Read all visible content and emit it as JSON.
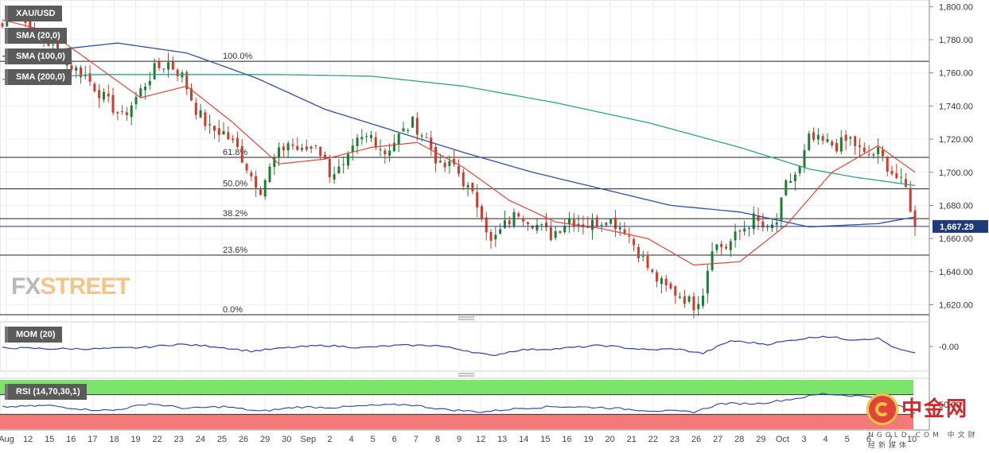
{
  "chart_data": {
    "type": "candlestick",
    "symbol": "XAU/USD",
    "last_price": "1,667.29",
    "indicators": [
      "SMA (20,0)",
      "SMA (100,0)",
      "SMA (200,0)"
    ],
    "colors": {
      "up": "#1e7d35",
      "down": "#d23a2a",
      "sma20": "#e0443a",
      "sma100": "#2f4fa8",
      "sma200": "#2aa58a",
      "price_line": "#1f3a7a"
    },
    "y_axis": {
      "min": 1614,
      "max": 1804,
      "ticks": [
        "1,800.00",
        "1,780.00",
        "1,760.00",
        "1,740.00",
        "1,720.00",
        "1,700.00",
        "1,680.00",
        "1,660.00",
        "1,640.00",
        "1,620.00"
      ],
      "tick_values": [
        1800,
        1780,
        1760,
        1740,
        1720,
        1700,
        1680,
        1660,
        1640,
        1620
      ]
    },
    "x_axis": {
      "labels": [
        "Aug",
        "12",
        "15",
        "16",
        "17",
        "18",
        "19",
        "22",
        "23",
        "24",
        "25",
        "26",
        "29",
        "30",
        "Sep",
        "2",
        "4",
        "5",
        "6",
        "7",
        "8",
        "9",
        "12",
        "13",
        "14",
        "15",
        "16",
        "19",
        "20",
        "21",
        "22",
        "23",
        "26",
        "27",
        "28",
        "29",
        "Oct",
        "3",
        "4",
        "5",
        "6",
        "7",
        "10"
      ]
    },
    "fibonacci": [
      {
        "label": "100.0%",
        "price": 1767
      },
      {
        "label": "61.8%",
        "price": 1709
      },
      {
        "label": "50.0%",
        "price": 1690
      },
      {
        "label": "38.2%",
        "price": 1672
      },
      {
        "label": "23.6%",
        "price": 1650
      },
      {
        "label": "0.0%",
        "price": 1614
      }
    ],
    "price_anchors": [
      [
        0,
        1788
      ],
      [
        2,
        1800
      ],
      [
        4,
        1794
      ],
      [
        7,
        1782
      ],
      [
        10,
        1778
      ],
      [
        14,
        1766
      ],
      [
        18,
        1758
      ],
      [
        22,
        1745
      ],
      [
        26,
        1733
      ],
      [
        29,
        1745
      ],
      [
        33,
        1762
      ],
      [
        36,
        1766
      ],
      [
        39,
        1758
      ],
      [
        42,
        1738
      ],
      [
        45,
        1726
      ],
      [
        48,
        1724
      ],
      [
        51,
        1714
      ],
      [
        54,
        1698
      ],
      [
        56,
        1690
      ],
      [
        59,
        1708
      ],
      [
        62,
        1718
      ],
      [
        65,
        1712
      ],
      [
        68,
        1718
      ],
      [
        71,
        1700
      ],
      [
        74,
        1702
      ],
      [
        77,
        1718
      ],
      [
        80,
        1722
      ],
      [
        83,
        1712
      ],
      [
        86,
        1722
      ],
      [
        89,
        1730
      ],
      [
        92,
        1720
      ],
      [
        95,
        1703
      ],
      [
        98,
        1704
      ],
      [
        101,
        1690
      ],
      [
        104,
        1676
      ],
      [
        106,
        1657
      ],
      [
        109,
        1668
      ],
      [
        112,
        1676
      ],
      [
        115,
        1670
      ],
      [
        119,
        1662
      ],
      [
        123,
        1672
      ],
      [
        127,
        1668
      ],
      [
        131,
        1672
      ],
      [
        135,
        1666
      ],
      [
        138,
        1652
      ],
      [
        141,
        1638
      ],
      [
        144,
        1630
      ],
      [
        147,
        1626
      ],
      [
        150,
        1620
      ],
      [
        152,
        1628
      ],
      [
        154,
        1656
      ],
      [
        157,
        1655
      ],
      [
        160,
        1664
      ],
      [
        163,
        1672
      ],
      [
        166,
        1664
      ],
      [
        168,
        1670
      ],
      [
        170,
        1692
      ],
      [
        173,
        1702
      ],
      [
        175,
        1720
      ],
      [
        178,
        1718
      ],
      [
        181,
        1716
      ],
      [
        184,
        1720
      ],
      [
        187,
        1710
      ],
      [
        190,
        1712
      ],
      [
        193,
        1700
      ],
      [
        196,
        1690
      ],
      [
        198,
        1668
      ]
    ],
    "sma20_anchors": [
      [
        0,
        1792
      ],
      [
        10,
        1785
      ],
      [
        20,
        1765
      ],
      [
        30,
        1745
      ],
      [
        40,
        1752
      ],
      [
        50,
        1730
      ],
      [
        60,
        1705
      ],
      [
        70,
        1708
      ],
      [
        80,
        1715
      ],
      [
        90,
        1718
      ],
      [
        100,
        1703
      ],
      [
        110,
        1683
      ],
      [
        120,
        1670
      ],
      [
        130,
        1666
      ],
      [
        140,
        1660
      ],
      [
        150,
        1644
      ],
      [
        160,
        1646
      ],
      [
        170,
        1668
      ],
      [
        180,
        1700
      ],
      [
        190,
        1716
      ],
      [
        198,
        1700
      ]
    ],
    "sma100_anchors": [
      [
        0,
        1770
      ],
      [
        15,
        1775
      ],
      [
        25,
        1778
      ],
      [
        40,
        1772
      ],
      [
        55,
        1757
      ],
      [
        70,
        1738
      ],
      [
        85,
        1725
      ],
      [
        100,
        1712
      ],
      [
        115,
        1700
      ],
      [
        130,
        1690
      ],
      [
        145,
        1680
      ],
      [
        160,
        1676
      ],
      [
        175,
        1667
      ],
      [
        190,
        1669
      ],
      [
        198,
        1673
      ]
    ],
    "sma200_anchors": [
      [
        0,
        1756
      ],
      [
        20,
        1759
      ],
      [
        40,
        1759
      ],
      [
        60,
        1759
      ],
      [
        80,
        1758
      ],
      [
        100,
        1752
      ],
      [
        120,
        1742
      ],
      [
        140,
        1730
      ],
      [
        160,
        1715
      ],
      [
        175,
        1702
      ],
      [
        185,
        1697
      ],
      [
        198,
        1692
      ]
    ],
    "mom_panel": {
      "label": "MOM (20)",
      "tick": "-0.00",
      "min": -1,
      "max": 1,
      "anchors": [
        [
          0,
          -0.05
        ],
        [
          10,
          -0.1
        ],
        [
          20,
          -0.1
        ],
        [
          30,
          -0.05
        ],
        [
          38,
          0.1
        ],
        [
          46,
          0.0
        ],
        [
          54,
          -0.2
        ],
        [
          62,
          -0.05
        ],
        [
          70,
          0.05
        ],
        [
          78,
          -0.05
        ],
        [
          86,
          0.05
        ],
        [
          94,
          0.05
        ],
        [
          100,
          -0.15
        ],
        [
          106,
          -0.4
        ],
        [
          112,
          -0.15
        ],
        [
          120,
          -0.1
        ],
        [
          130,
          0.05
        ],
        [
          140,
          -0.15
        ],
        [
          146,
          -0.1
        ],
        [
          152,
          -0.3
        ],
        [
          158,
          0.25
        ],
        [
          166,
          0.1
        ],
        [
          172,
          0.3
        ],
        [
          178,
          0.45
        ],
        [
          184,
          0.3
        ],
        [
          190,
          0.35
        ],
        [
          194,
          -0.1
        ],
        [
          198,
          -0.3
        ]
      ]
    },
    "rsi_panel": {
      "label": "RSI (14,70,30,1)",
      "tick": "50.00",
      "min": 0,
      "max": 100,
      "upper": 70,
      "lower": 30,
      "anchors": [
        [
          0,
          45
        ],
        [
          10,
          48
        ],
        [
          18,
          40
        ],
        [
          24,
          38
        ],
        [
          32,
          52
        ],
        [
          40,
          42
        ],
        [
          48,
          46
        ],
        [
          56,
          36
        ],
        [
          64,
          45
        ],
        [
          72,
          44
        ],
        [
          80,
          48
        ],
        [
          88,
          50
        ],
        [
          96,
          40
        ],
        [
          104,
          35
        ],
        [
          112,
          42
        ],
        [
          120,
          46
        ],
        [
          130,
          44
        ],
        [
          140,
          38
        ],
        [
          150,
          35
        ],
        [
          156,
          52
        ],
        [
          164,
          52
        ],
        [
          172,
          62
        ],
        [
          178,
          72
        ],
        [
          184,
          68
        ],
        [
          190,
          66
        ],
        [
          194,
          50
        ],
        [
          198,
          32
        ]
      ]
    }
  },
  "watermark": {
    "cn": "中金网",
    "sub": "NGOLD.COM 中文财经新媒体"
  },
  "brand": {
    "part1": "FX",
    "part2": "STREET"
  }
}
